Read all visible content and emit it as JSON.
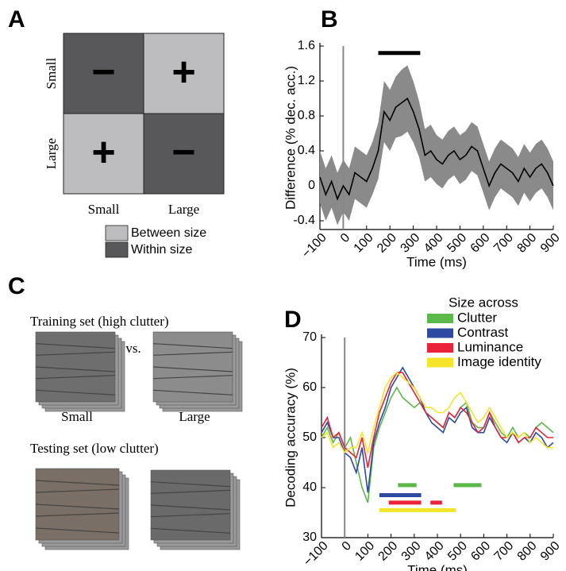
{
  "panel_a": {
    "panel_label": "A",
    "cells": [
      {
        "sign": "−",
        "kind": "within"
      },
      {
        "sign": "+",
        "kind": "between"
      },
      {
        "sign": "+",
        "kind": "between"
      },
      {
        "sign": "−",
        "kind": "within"
      }
    ],
    "row_labels": [
      "Small",
      "Large"
    ],
    "col_labels": [
      "Small",
      "Large"
    ],
    "legend": [
      {
        "kind": "between",
        "label": "Between size",
        "color": "#bdbdbf"
      },
      {
        "kind": "within",
        "label": "Within size",
        "color": "#58585a"
      }
    ]
  },
  "panel_c": {
    "panel_label": "C",
    "training_title": "Training set (high clutter)",
    "versus": "vs.",
    "training_labels": [
      "Small",
      "Large"
    ],
    "testing_title": "Testing set (low clutter)"
  },
  "chart_data": [
    {
      "type": "line",
      "panel_label": "B",
      "x_label": "Time (ms)",
      "y_label": "Difference (% dec. acc.)",
      "x": [
        -100,
        -75,
        -50,
        -25,
        0,
        25,
        50,
        75,
        100,
        125,
        150,
        175,
        200,
        225,
        250,
        275,
        300,
        325,
        350,
        375,
        400,
        425,
        450,
        475,
        500,
        525,
        550,
        575,
        600,
        625,
        650,
        675,
        700,
        725,
        750,
        775,
        800,
        825,
        850,
        875,
        900
      ],
      "series": [
        {
          "color": "#000000",
          "band_color": "#8a8a8a",
          "values": [
            0.1,
            -0.1,
            0.05,
            -0.15,
            0.0,
            -0.1,
            0.15,
            0.1,
            0.05,
            0.2,
            0.4,
            0.85,
            0.75,
            0.9,
            0.95,
            1.0,
            0.85,
            0.65,
            0.35,
            0.4,
            0.3,
            0.25,
            0.35,
            0.4,
            0.3,
            0.35,
            0.45,
            0.4,
            0.2,
            0.0,
            0.15,
            0.25,
            0.2,
            0.15,
            0.05,
            0.2,
            0.1,
            0.2,
            0.25,
            0.15,
            0.0
          ],
          "error": [
            0.3,
            0.3,
            0.3,
            0.3,
            0.3,
            0.3,
            0.3,
            0.3,
            0.3,
            0.3,
            0.32,
            0.35,
            0.35,
            0.35,
            0.38,
            0.38,
            0.35,
            0.32,
            0.3,
            0.3,
            0.28,
            0.28,
            0.28,
            0.28,
            0.28,
            0.28,
            0.28,
            0.28,
            0.28,
            0.28,
            0.28,
            0.28,
            0.28,
            0.28,
            0.28,
            0.28,
            0.28,
            0.28,
            0.28,
            0.28,
            0.28
          ]
        }
      ],
      "significance": [
        {
          "start": 150,
          "end": 330,
          "y": 1.52,
          "color": "#000000"
        }
      ],
      "onset_line": 0,
      "xlim": [
        -100,
        900
      ],
      "xticks": [
        {
          "value": -100,
          "label": "−100"
        },
        0,
        100,
        200,
        300,
        400,
        500,
        600,
        700,
        800,
        900
      ],
      "ylim": [
        -0.5,
        1.6
      ],
      "yticks": [
        -0.4,
        0,
        0.4,
        0.8,
        1.2,
        1.6
      ]
    },
    {
      "type": "line",
      "panel_label": "D",
      "x_label": "Time (ms)",
      "y_label": "Decoding accuracy (%)",
      "legend_title": "Size across",
      "x": [
        -100,
        -75,
        -50,
        -25,
        0,
        25,
        50,
        75,
        100,
        125,
        150,
        175,
        200,
        225,
        250,
        275,
        300,
        325,
        350,
        375,
        400,
        425,
        450,
        475,
        500,
        525,
        550,
        575,
        600,
        625,
        650,
        675,
        700,
        725,
        750,
        775,
        800,
        825,
        850,
        875,
        900
      ],
      "series": [
        {
          "name": "Clutter",
          "color": "#5cb84a",
          "values": [
            50,
            52,
            49,
            51,
            48,
            50,
            45,
            40,
            37,
            48,
            52,
            55,
            58,
            60,
            58,
            57,
            56,
            57,
            55,
            54,
            53,
            52,
            55,
            54,
            56,
            57,
            53,
            52,
            52,
            55,
            53,
            51,
            50,
            52,
            50,
            51,
            50,
            52,
            53,
            52,
            51
          ]
        },
        {
          "name": "Contrast",
          "color": "#2b4aa0",
          "values": [
            51,
            53,
            50,
            50,
            47,
            46,
            43,
            48,
            39,
            49,
            53,
            56,
            60,
            62,
            64,
            62,
            60,
            58,
            55,
            53,
            52,
            51,
            54,
            53,
            55,
            56,
            52,
            51,
            51,
            54,
            52,
            50,
            49,
            51,
            49,
            50,
            49,
            51,
            50,
            48,
            49
          ]
        },
        {
          "name": "Luminance",
          "color": "#e8233a",
          "values": [
            52,
            54,
            50,
            51,
            48,
            47,
            46,
            50,
            44,
            50,
            55,
            58,
            61,
            63,
            63,
            61,
            59,
            57,
            55,
            54,
            53,
            52,
            55,
            54,
            56,
            55,
            53,
            51,
            52,
            55,
            52,
            50,
            50,
            51,
            49,
            50,
            50,
            52,
            51,
            50,
            50
          ]
        },
        {
          "name": "Image identity",
          "color": "#f5e52a",
          "values": [
            50,
            51,
            48,
            49,
            47,
            48,
            48,
            51,
            47,
            52,
            56,
            60,
            62,
            63,
            62,
            61,
            60,
            58,
            56,
            56,
            55,
            55,
            56,
            58,
            59,
            57,
            55,
            53,
            54,
            56,
            54,
            52,
            50,
            51,
            50,
            51,
            49,
            50,
            49,
            48,
            48
          ]
        }
      ],
      "significance": [
        {
          "start": 230,
          "end": 310,
          "y": 40.5,
          "color": "#5cb84a"
        },
        {
          "start": 470,
          "end": 590,
          "y": 40.5,
          "color": "#5cb84a"
        },
        {
          "start": 150,
          "end": 330,
          "y": 38.5,
          "color": "#2b4aa0"
        },
        {
          "start": 190,
          "end": 330,
          "y": 37,
          "color": "#e8233a"
        },
        {
          "start": 370,
          "end": 420,
          "y": 37,
          "color": "#e8233a"
        },
        {
          "start": 150,
          "end": 480,
          "y": 35.5,
          "color": "#f5e52a"
        }
      ],
      "onset_line": 0,
      "xlim": [
        -100,
        900
      ],
      "xticks": [
        {
          "value": -100,
          "label": "−100"
        },
        0,
        100,
        200,
        300,
        400,
        500,
        600,
        700,
        800,
        900
      ],
      "ylim": [
        30,
        70
      ],
      "yticks": [
        30,
        40,
        50,
        60,
        70
      ]
    }
  ]
}
